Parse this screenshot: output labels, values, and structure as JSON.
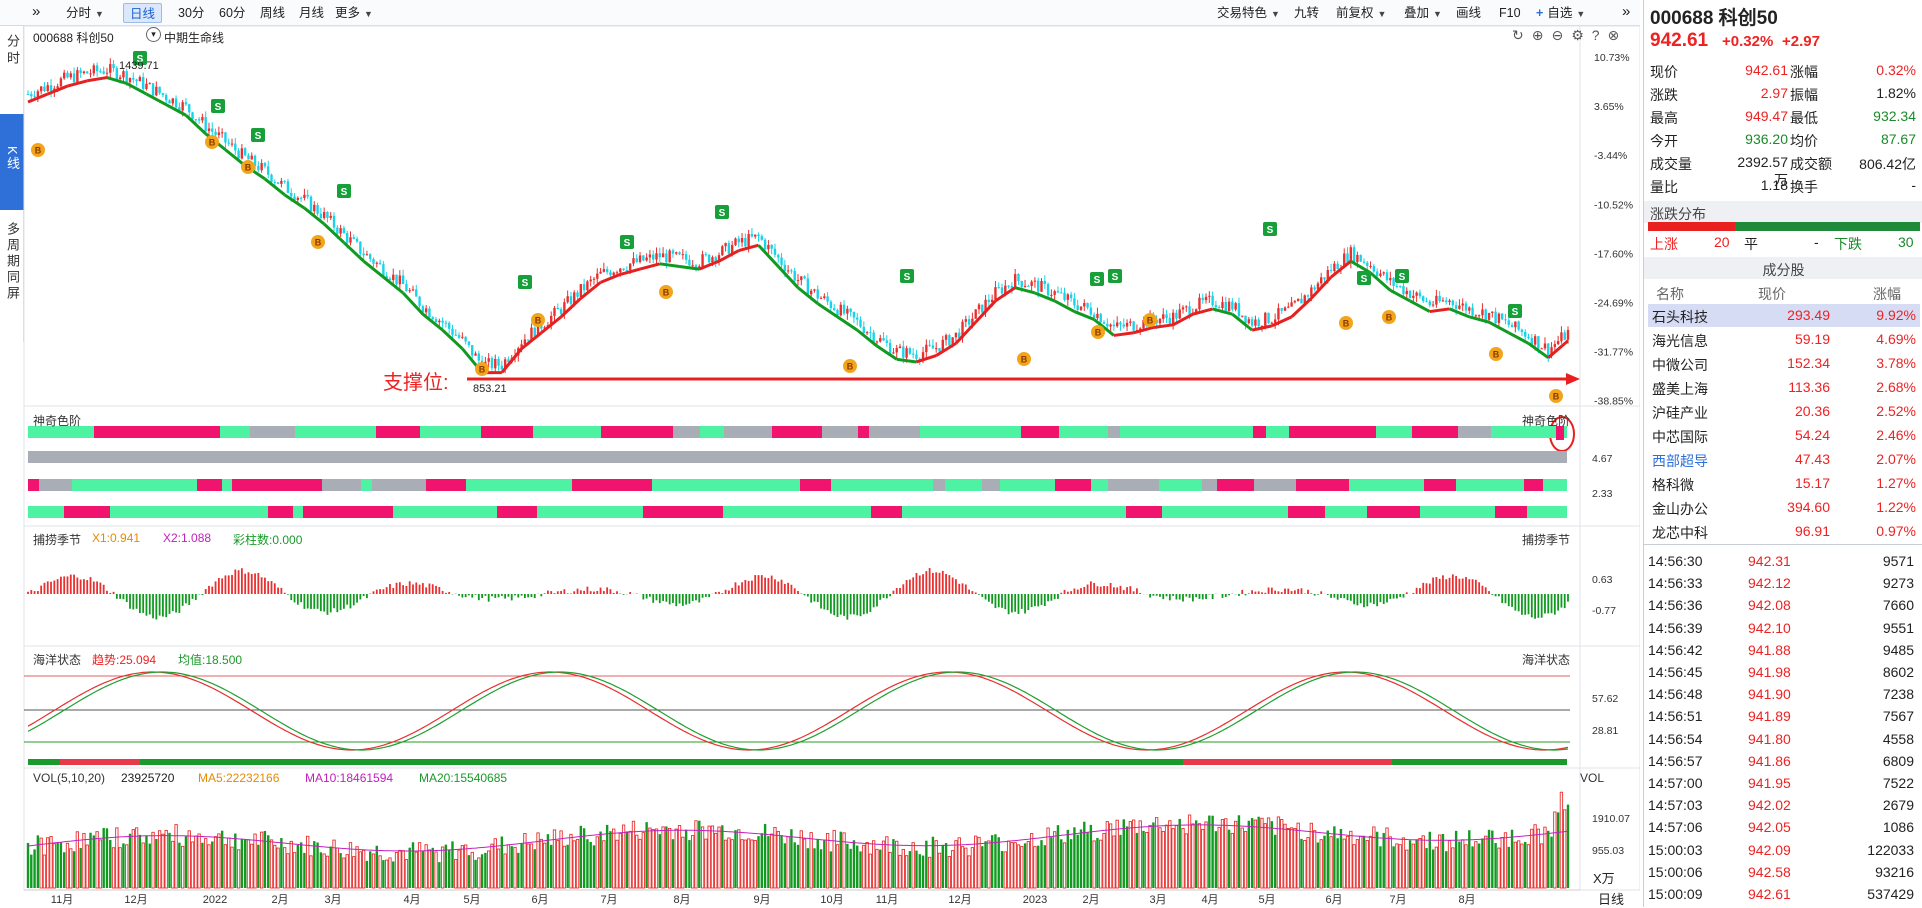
{
  "toolbar": {
    "left": [
      {
        "label": "分时",
        "dd": true
      },
      {
        "label": "日线",
        "active": true
      },
      {
        "label": "30分"
      },
      {
        "label": "60分"
      },
      {
        "label": "周线"
      },
      {
        "label": "月线"
      },
      {
        "label": "更多",
        "dd": true
      }
    ],
    "right": [
      {
        "label": "交易特色",
        "dd": true
      },
      {
        "label": "九转"
      },
      {
        "label": "前复权",
        "dd": true
      },
      {
        "label": "叠加",
        "dd": true
      },
      {
        "label": "画线"
      },
      {
        "label": "F10"
      },
      {
        "label": "自选",
        "dd": true
      }
    ]
  },
  "leftnav": [
    "分时",
    "K线",
    "多周期同屏"
  ],
  "chart_header": {
    "code": "000688 科创50",
    "indicator": "中期生命线"
  },
  "price_axis": [
    "10.73%",
    "3.65%",
    "-3.44%",
    "-10.52%",
    "-17.60%",
    "-24.69%",
    "-31.77%",
    "-38.85%"
  ],
  "annotations": {
    "high": "1439.71",
    "low": "853.21",
    "support": "支撑位:"
  },
  "panels": {
    "color": {
      "title": "神奇色阶",
      "right": "神奇色阶",
      "ticks": [
        "4.67",
        "2.33"
      ]
    },
    "season": {
      "title": "捕捞季节",
      "x1": "X1:0.941",
      "x2": "X2:1.088",
      "bar": "彩柱数:0.000",
      "right": "捕捞季节",
      "ticks": [
        "0.63",
        "-0.77"
      ]
    },
    "ocean": {
      "title": "海洋状态",
      "trend": "趋势:25.094",
      "avg": "均值:18.500",
      "right": "海洋状态",
      "ticks": [
        "57.62",
        "28.81"
      ]
    },
    "vol": {
      "title": "VOL(5,10,20)",
      "v": "23925720",
      "ma5": "MA5:22232166",
      "ma10": "MA10:18461594",
      "ma20": "MA20:15540685",
      "right": "VOL",
      "ticks": [
        "1910.07",
        "955.03"
      ],
      "unit": "X万"
    }
  },
  "months": [
    "11月",
    "12月",
    "2022",
    "2月",
    "3月",
    "4月",
    "5月",
    "6月",
    "7月",
    "8月",
    "9月",
    "10月",
    "11月",
    "12月",
    "2023",
    "2月",
    "3月",
    "4月",
    "5月",
    "6月",
    "7月",
    "8月"
  ],
  "bottom_tab": "日线",
  "quote": {
    "code": "000688 科创50",
    "price": "942.61",
    "chg_pct": "+0.32%",
    "chg": "+2.97",
    "fields": [
      [
        "现价",
        "942.61",
        "r",
        "涨幅",
        "0.32%",
        "r"
      ],
      [
        "涨跌",
        "2.97",
        "r",
        "振幅",
        "1.82%",
        ""
      ],
      [
        "最高",
        "949.47",
        "r",
        "最低",
        "932.34",
        "g"
      ],
      [
        "今开",
        "936.20",
        "g",
        "均价",
        "87.67",
        "g"
      ],
      [
        "成交量",
        "2392.57万",
        "",
        "成交额",
        "806.42亿",
        ""
      ],
      [
        "量比",
        "1.18",
        "",
        "换手",
        "-",
        ""
      ]
    ],
    "dist_title": "涨跌分布",
    "up_label": "上涨",
    "up": "20",
    "flat_label": "平",
    "flat": "-",
    "down_label": "下跌",
    "down": "30"
  },
  "constituents": {
    "title": "成分股",
    "headers": [
      "名称",
      "现价",
      "涨幅"
    ],
    "rows": [
      [
        "石头科技",
        "293.49",
        "9.92%"
      ],
      [
        "海光信息",
        "59.19",
        "4.69%"
      ],
      [
        "中微公司",
        "152.34",
        "3.78%"
      ],
      [
        "盛美上海",
        "113.36",
        "2.68%"
      ],
      [
        "沪硅产业",
        "20.36",
        "2.52%"
      ],
      [
        "中芯国际",
        "54.24",
        "2.46%"
      ],
      [
        "西部超导",
        "47.43",
        "2.07%"
      ],
      [
        "格科微",
        "15.17",
        "1.27%"
      ],
      [
        "金山办公",
        "394.60",
        "1.22%"
      ],
      [
        "龙芯中科",
        "96.91",
        "0.97%"
      ]
    ]
  },
  "ticks": [
    [
      "14:56:30",
      "942.31",
      "9571"
    ],
    [
      "14:56:33",
      "942.12",
      "9273"
    ],
    [
      "14:56:36",
      "942.08",
      "7660"
    ],
    [
      "14:56:39",
      "942.10",
      "9551"
    ],
    [
      "14:56:42",
      "941.88",
      "9485"
    ],
    [
      "14:56:45",
      "941.98",
      "8602"
    ],
    [
      "14:56:48",
      "941.90",
      "7238"
    ],
    [
      "14:56:51",
      "941.89",
      "7567"
    ],
    [
      "14:56:54",
      "941.80",
      "4558"
    ],
    [
      "14:56:57",
      "941.86",
      "6809"
    ],
    [
      "14:57:00",
      "941.95",
      "7522"
    ],
    [
      "14:57:03",
      "942.02",
      "2679"
    ],
    [
      "14:57:06",
      "942.05",
      "1086"
    ],
    [
      "15:00:03",
      "942.09",
      "122033"
    ],
    [
      "15:00:06",
      "942.58",
      "93216"
    ],
    [
      "15:00:09",
      "942.61",
      "537429"
    ]
  ],
  "chart_data": {
    "type": "candlestick",
    "title": "000688 科创50 日线",
    "x_months": [
      "11月",
      "12月",
      "2022",
      "2月",
      "3月",
      "4月",
      "5月",
      "6月",
      "7月",
      "8月",
      "9月",
      "10月",
      "11月",
      "12月",
      "2023",
      "2月",
      "3月",
      "4月",
      "5月",
      "6月",
      "7月",
      "8月"
    ],
    "price_high": 1439.71,
    "price_low": 853.21,
    "last_close": 942.61,
    "trend_close": [
      1390,
      1405,
      1420,
      1430,
      1436,
      1425,
      1405,
      1385,
      1365,
      1330,
      1300,
      1270,
      1245,
      1215,
      1190,
      1160,
      1125,
      1090,
      1060,
      1030,
      990,
      960,
      925,
      880,
      880,
      925,
      955,
      985,
      1020,
      1050,
      1065,
      1075,
      1085,
      1080,
      1075,
      1090,
      1110,
      1120,
      1080,
      1040,
      1010,
      985,
      960,
      930,
      905,
      900,
      912,
      935,
      975,
      1015,
      1040,
      1030,
      1015,
      995,
      980,
      950,
      955,
      965,
      970,
      990,
      1000,
      990,
      960,
      968,
      985,
      1020,
      1060,
      1090,
      1068,
      1035,
      1015,
      995,
      1000,
      985,
      975,
      955,
      935,
      908,
      940
    ],
    "pct_axis": [
      "10.73%",
      "3.65%",
      "-3.44%",
      "-10.52%",
      "-17.60%",
      "-24.69%",
      "-31.77%",
      "-38.85%"
    ],
    "volume_axis": [
      1910.07,
      955.03
    ],
    "volume_unit": "X万"
  }
}
